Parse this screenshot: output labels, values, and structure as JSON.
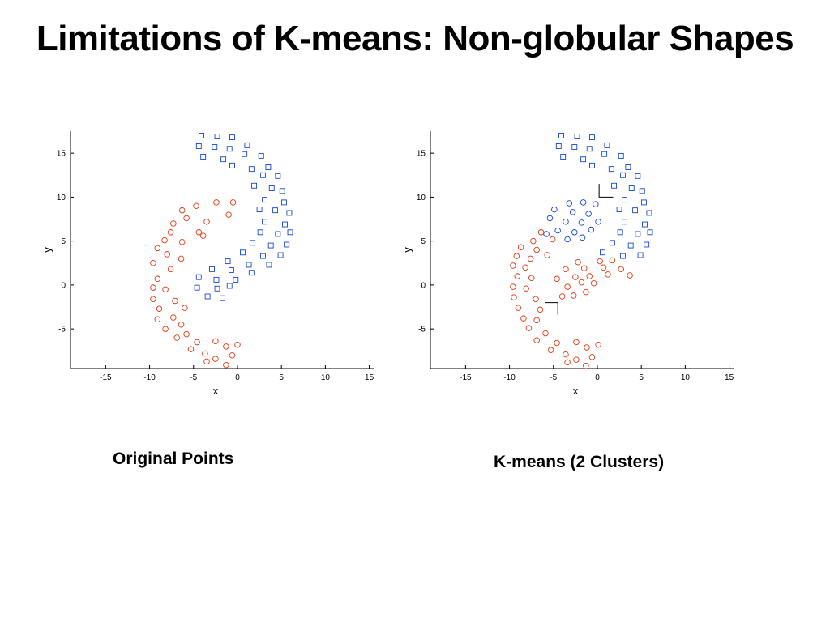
{
  "slide": {
    "title": "Limitations of K-means: Non-globular Shapes",
    "caption_left": "Original Points",
    "caption_right": "K-means (2 Clusters)"
  },
  "colors": {
    "cluster_red": "#e23a12",
    "cluster_blue": "#1446d6",
    "axis": "#000000"
  },
  "chart_data": [
    {
      "type": "scatter",
      "xlabel": "x",
      "ylabel": "y",
      "xlim": [
        -19,
        15.5
      ],
      "ylim": [
        -9.5,
        17.5
      ],
      "xticks": [
        -15,
        -10,
        -5,
        0,
        5,
        10,
        15
      ],
      "yticks": [
        -5,
        0,
        5,
        10,
        15
      ],
      "xticklabels": [
        "-15",
        "-10",
        "-5",
        "0",
        "5",
        "10",
        "15"
      ],
      "yticklabels": [
        "-5",
        "0",
        "5",
        "10",
        "15"
      ],
      "series": [
        {
          "marker": "circle",
          "color": "#e23a12",
          "points": [
            [
              -2.4,
              9.4
            ],
            [
              -0.5,
              9.4
            ],
            [
              -4.7,
              9.0
            ],
            [
              -6.3,
              8.5
            ],
            [
              -1.0,
              8.0
            ],
            [
              -5.8,
              7.6
            ],
            [
              -7.3,
              7.0
            ],
            [
              -3.5,
              7.2
            ],
            [
              -4.4,
              6.0
            ],
            [
              -7.6,
              6.0
            ],
            [
              -8.3,
              5.1
            ],
            [
              -6.3,
              4.9
            ],
            [
              -3.9,
              5.6
            ],
            [
              -9.1,
              4.2
            ],
            [
              -8.0,
              3.5
            ],
            [
              -6.4,
              3.0
            ],
            [
              -9.6,
              2.5
            ],
            [
              -7.6,
              1.8
            ],
            [
              -9.1,
              0.7
            ],
            [
              -9.6,
              -0.3
            ],
            [
              -8.2,
              -0.5
            ],
            [
              -9.6,
              -1.6
            ],
            [
              -7.1,
              -1.8
            ],
            [
              -8.9,
              -2.7
            ],
            [
              -6.0,
              -2.6
            ],
            [
              -9.1,
              -3.9
            ],
            [
              -7.3,
              -3.7
            ],
            [
              -6.4,
              -4.5
            ],
            [
              -8.2,
              -5.0
            ],
            [
              -5.8,
              -5.6
            ],
            [
              -6.9,
              -6.0
            ],
            [
              -4.6,
              -6.5
            ],
            [
              -5.3,
              -7.3
            ],
            [
              -2.5,
              -6.4
            ],
            [
              -3.7,
              -7.8
            ],
            [
              -1.3,
              -7.0
            ],
            [
              0.0,
              -6.8
            ],
            [
              -2.5,
              -8.4
            ],
            [
              -0.6,
              -8.0
            ],
            [
              -1.3,
              -9.1
            ],
            [
              -3.5,
              -8.7
            ]
          ]
        },
        {
          "marker": "square",
          "color": "#1446d6",
          "points": [
            [
              -4.1,
              17.0
            ],
            [
              -2.3,
              16.9
            ],
            [
              -0.6,
              16.8
            ],
            [
              -4.4,
              15.8
            ],
            [
              -2.6,
              15.7
            ],
            [
              -0.9,
              15.5
            ],
            [
              1.1,
              15.9
            ],
            [
              -3.9,
              14.6
            ],
            [
              -1.6,
              14.3
            ],
            [
              0.8,
              14.9
            ],
            [
              2.7,
              14.7
            ],
            [
              -0.6,
              13.6
            ],
            [
              1.6,
              13.2
            ],
            [
              3.5,
              13.4
            ],
            [
              2.9,
              12.5
            ],
            [
              4.6,
              12.4
            ],
            [
              1.9,
              11.3
            ],
            [
              3.9,
              11.0
            ],
            [
              5.1,
              10.7
            ],
            [
              3.1,
              9.7
            ],
            [
              5.3,
              9.4
            ],
            [
              2.5,
              8.6
            ],
            [
              4.3,
              8.5
            ],
            [
              5.9,
              8.2
            ],
            [
              3.1,
              7.2
            ],
            [
              5.4,
              6.9
            ],
            [
              2.6,
              6.0
            ],
            [
              4.6,
              5.8
            ],
            [
              6.0,
              6.0
            ],
            [
              1.7,
              4.8
            ],
            [
              3.8,
              4.5
            ],
            [
              5.6,
              4.6
            ],
            [
              0.6,
              3.7
            ],
            [
              2.9,
              3.3
            ],
            [
              4.9,
              3.4
            ],
            [
              -1.1,
              2.7
            ],
            [
              1.3,
              2.3
            ],
            [
              3.6,
              2.3
            ],
            [
              -2.9,
              1.8
            ],
            [
              -0.7,
              1.7
            ],
            [
              1.6,
              1.4
            ],
            [
              -4.4,
              0.9
            ],
            [
              -2.4,
              0.6
            ],
            [
              -0.2,
              0.6
            ],
            [
              -4.6,
              -0.3
            ],
            [
              -2.3,
              -0.4
            ],
            [
              -0.9,
              -0.1
            ],
            [
              -3.4,
              -1.3
            ],
            [
              -1.7,
              -1.5
            ]
          ]
        }
      ]
    },
    {
      "type": "scatter",
      "xlabel": "x",
      "ylabel": "y",
      "xlim": [
        -19,
        15.5
      ],
      "ylim": [
        -9.5,
        17.5
      ],
      "xticks": [
        -15,
        -10,
        -5,
        0,
        5,
        10,
        15
      ],
      "yticks": [
        -5,
        0,
        5,
        10,
        15
      ],
      "xticklabels": [
        "-15",
        "-10",
        "-5",
        "0",
        "5",
        "10",
        "15"
      ],
      "yticklabels": [
        "-5",
        "0",
        "5",
        "10",
        "15"
      ],
      "series": [
        {
          "marker": "circle",
          "color": "#e23a12",
          "points": [
            [
              -6.4,
              6.0
            ],
            [
              -7.3,
              5.0
            ],
            [
              -5.1,
              5.2
            ],
            [
              -8.7,
              4.3
            ],
            [
              -6.9,
              4.0
            ],
            [
              -9.2,
              3.3
            ],
            [
              -7.6,
              3.0
            ],
            [
              -5.7,
              3.4
            ],
            [
              -9.6,
              2.2
            ],
            [
              -8.2,
              2.0
            ],
            [
              -9.1,
              1.0
            ],
            [
              -7.5,
              0.8
            ],
            [
              -9.6,
              -0.2
            ],
            [
              -8.1,
              -0.4
            ],
            [
              -9.5,
              -1.4
            ],
            [
              -7.0,
              -1.6
            ],
            [
              -9.0,
              -2.6
            ],
            [
              -6.5,
              -2.8
            ],
            [
              -8.4,
              -3.8
            ],
            [
              -6.9,
              -4.0
            ],
            [
              -7.8,
              -4.9
            ],
            [
              -5.9,
              -5.5
            ],
            [
              -6.9,
              -6.3
            ],
            [
              -4.6,
              -6.6
            ],
            [
              -5.3,
              -7.4
            ],
            [
              -2.4,
              -6.5
            ],
            [
              -3.6,
              -7.9
            ],
            [
              -1.2,
              -7.1
            ],
            [
              0.1,
              -6.8
            ],
            [
              -2.4,
              -8.5
            ],
            [
              -0.6,
              -8.2
            ],
            [
              -1.3,
              -9.2
            ],
            [
              -3.4,
              -8.8
            ],
            [
              -4.0,
              -1.3
            ],
            [
              -2.7,
              -1.2
            ],
            [
              -1.3,
              -0.8
            ],
            [
              -3.4,
              -0.2
            ],
            [
              -1.8,
              0.3
            ],
            [
              -0.4,
              0.2
            ],
            [
              -4.6,
              0.7
            ],
            [
              -2.5,
              0.9
            ],
            [
              -0.9,
              1.0
            ],
            [
              1.2,
              1.2
            ],
            [
              -3.6,
              1.8
            ],
            [
              -1.5,
              1.9
            ],
            [
              0.7,
              2.0
            ],
            [
              2.7,
              1.8
            ],
            [
              3.7,
              1.1
            ],
            [
              -2.2,
              2.6
            ],
            [
              0.3,
              2.7
            ],
            [
              1.7,
              2.8
            ]
          ]
        },
        {
          "marker": "circle",
          "color": "#1446d6",
          "points": [
            [
              -3.2,
              9.3
            ],
            [
              -1.6,
              9.4
            ],
            [
              -0.2,
              9.2
            ],
            [
              -4.9,
              8.6
            ],
            [
              -2.8,
              8.3
            ],
            [
              -1.0,
              8.1
            ],
            [
              -5.4,
              7.6
            ],
            [
              -3.6,
              7.2
            ],
            [
              -1.8,
              7.1
            ],
            [
              0.1,
              7.2
            ],
            [
              -4.5,
              6.2
            ],
            [
              -2.6,
              6.0
            ],
            [
              -0.7,
              6.3
            ],
            [
              -5.8,
              5.8
            ],
            [
              -3.4,
              5.2
            ],
            [
              -1.7,
              5.4
            ]
          ]
        },
        {
          "marker": "square",
          "color": "#1446d6",
          "points": [
            [
              -4.1,
              17.0
            ],
            [
              -2.3,
              16.9
            ],
            [
              -0.6,
              16.8
            ],
            [
              -4.4,
              15.8
            ],
            [
              -2.6,
              15.7
            ],
            [
              -0.9,
              15.5
            ],
            [
              1.1,
              15.9
            ],
            [
              -3.9,
              14.6
            ],
            [
              -1.6,
              14.3
            ],
            [
              0.8,
              14.9
            ],
            [
              2.7,
              14.7
            ],
            [
              -0.6,
              13.6
            ],
            [
              1.6,
              13.2
            ],
            [
              3.5,
              13.4
            ],
            [
              2.9,
              12.5
            ],
            [
              4.6,
              12.4
            ],
            [
              1.9,
              11.3
            ],
            [
              3.9,
              11.0
            ],
            [
              5.1,
              10.7
            ],
            [
              3.1,
              9.7
            ],
            [
              5.3,
              9.4
            ],
            [
              2.5,
              8.6
            ],
            [
              4.3,
              8.5
            ],
            [
              5.9,
              8.2
            ],
            [
              3.1,
              7.2
            ],
            [
              5.4,
              6.9
            ],
            [
              2.6,
              6.0
            ],
            [
              4.6,
              5.8
            ],
            [
              6.0,
              6.0
            ],
            [
              1.7,
              4.8
            ],
            [
              3.8,
              4.5
            ],
            [
              5.6,
              4.6
            ],
            [
              0.6,
              3.7
            ],
            [
              2.9,
              3.3
            ],
            [
              4.9,
              3.4
            ]
          ]
        },
        {
          "marker": "line",
          "color": "#000000",
          "points": [
            [
              0.2,
              11.5
            ],
            [
              0.2,
              10.0
            ],
            [
              1.8,
              10.0
            ]
          ]
        },
        {
          "marker": "line",
          "color": "#000000",
          "points": [
            [
              -4.5,
              -3.4
            ],
            [
              -4.5,
              -2.0
            ],
            [
              -6.0,
              -2.0
            ]
          ]
        }
      ]
    }
  ]
}
